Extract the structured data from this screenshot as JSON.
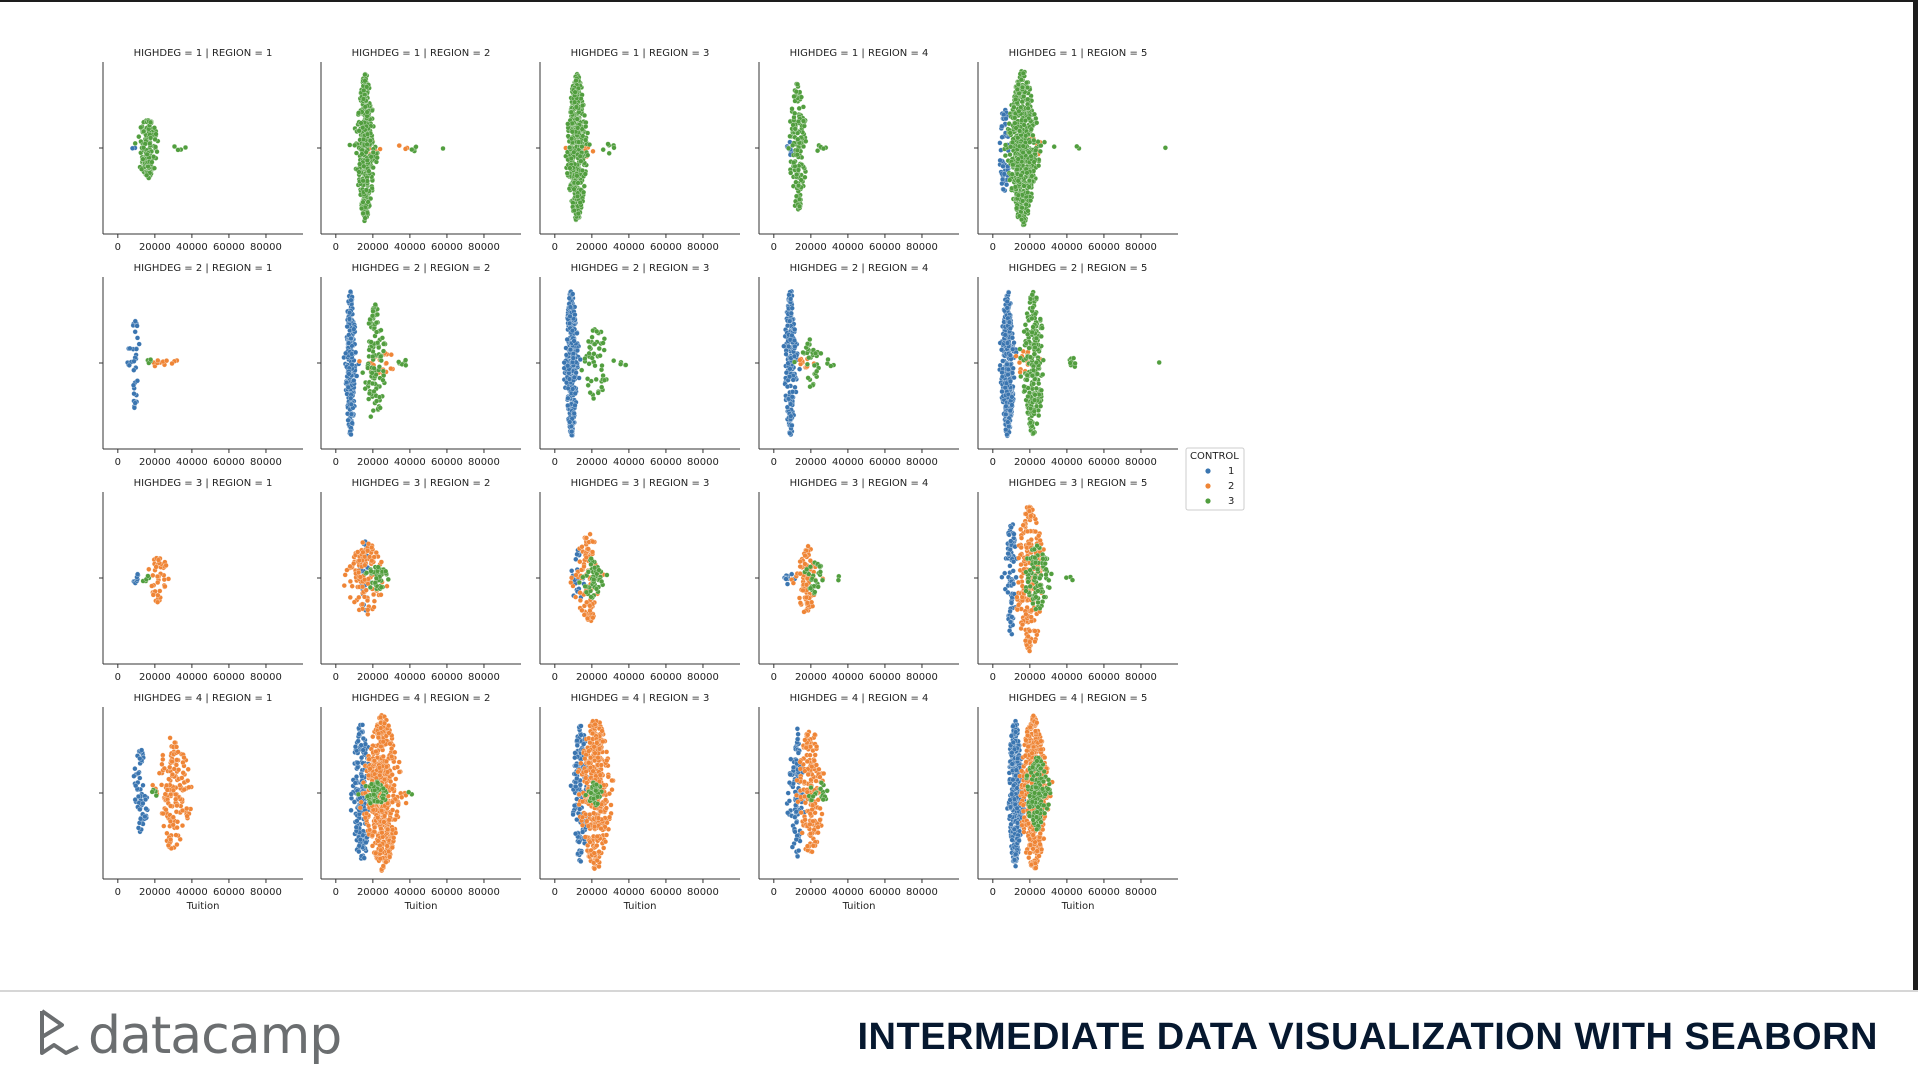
{
  "footer": {
    "brand": "datacamp",
    "course_title": "INTERMEDIATE DATA VISUALIZATION WITH SEABORN"
  },
  "colors": {
    "control_1": "#3a75b0",
    "control_2": "#ef8536",
    "control_3": "#519e3e",
    "brand_gray": "#6b6e70",
    "title_navy": "#06182f"
  },
  "chart_data": {
    "type": "scatter",
    "kind": "swarm",
    "rows": [
      {
        "title_prefix": "HIGHDEG = 1"
      },
      {
        "title_prefix": "HIGHDEG = 2"
      },
      {
        "title_prefix": "HIGHDEG = 3"
      },
      {
        "title_prefix": "HIGHDEG = 4"
      }
    ],
    "col_titles": [
      "REGION = 1",
      "REGION = 2",
      "REGION = 3",
      "REGION = 4",
      "REGION = 5"
    ],
    "xlabel": "Tuition",
    "xlim": [
      -8000,
      100000
    ],
    "xticks": [
      0,
      20000,
      40000,
      60000,
      80000
    ],
    "legend": {
      "title": "CONTROL",
      "placement": "right-center",
      "entries": [
        {
          "label": "1",
          "color": "#3a75b0"
        },
        {
          "label": "2",
          "color": "#ef8536"
        },
        {
          "label": "3",
          "color": "#519e3e"
        }
      ]
    },
    "panels": [
      [
        {
          "groups": [
            {
              "control": 1,
              "center": 8000,
              "spread": 600,
              "n": 2,
              "height": 0.05
            },
            {
              "control": 3,
              "center": 16000,
              "spread": 4500,
              "n": 140,
              "height": 0.38
            },
            {
              "control": 3,
              "center": 30000,
              "spread": 4000,
              "n": 4,
              "height": 0.05
            }
          ]
        },
        {
          "groups": [
            {
              "control": 2,
              "center": 18000,
              "spread": 6000,
              "n": 25,
              "height": 0.15
            },
            {
              "control": 2,
              "center": 36000,
              "spread": 2500,
              "n": 4,
              "height": 0.05
            },
            {
              "control": 3,
              "center": 16000,
              "spread": 3800,
              "n": 380,
              "height": 0.9
            },
            {
              "control": 3,
              "center": 42000,
              "spread": 4000,
              "n": 4,
              "height": 0.05
            },
            {
              "control": 3,
              "center": 58000,
              "spread": 800,
              "n": 1,
              "height": 0.02
            }
          ]
        },
        {
          "groups": [
            {
              "control": 2,
              "center": 15000,
              "spread": 5000,
              "n": 15,
              "height": 0.12
            },
            {
              "control": 3,
              "center": 12000,
              "spread": 4200,
              "n": 420,
              "height": 0.9
            },
            {
              "control": 3,
              "center": 30000,
              "spread": 3000,
              "n": 6,
              "height": 0.08
            }
          ]
        },
        {
          "groups": [
            {
              "control": 1,
              "center": 9000,
              "spread": 1800,
              "n": 10,
              "height": 0.1
            },
            {
              "control": 3,
              "center": 13000,
              "spread": 3500,
              "n": 150,
              "height": 0.8
            },
            {
              "control": 3,
              "center": 26000,
              "spread": 3000,
              "n": 6,
              "height": 0.05
            }
          ]
        },
        {
          "groups": [
            {
              "control": 1,
              "center": 6000,
              "spread": 2600,
              "n": 50,
              "height": 0.55
            },
            {
              "control": 2,
              "center": 20000,
              "spread": 6000,
              "n": 25,
              "height": 0.15
            },
            {
              "control": 3,
              "center": 16000,
              "spread": 6000,
              "n": 600,
              "height": 0.95
            },
            {
              "control": 3,
              "center": 45000,
              "spread": 1500,
              "n": 2,
              "height": 0.03
            },
            {
              "control": 3,
              "center": 93000,
              "spread": 800,
              "n": 1,
              "height": 0.02
            }
          ]
        }
      ],
      [
        {
          "groups": [
            {
              "control": 1,
              "center": 9000,
              "spread": 2200,
              "n": 35,
              "height": 0.6
            },
            {
              "control": 2,
              "center": 22000,
              "spread": 6000,
              "n": 8,
              "height": 0.05
            },
            {
              "control": 3,
              "center": 18000,
              "spread": 3000,
              "n": 5,
              "height": 0.05
            },
            {
              "control": 2,
              "center": 32000,
              "spread": 2500,
              "n": 3,
              "height": 0.04
            }
          ]
        },
        {
          "groups": [
            {
              "control": 1,
              "center": 8000,
              "spread": 2200,
              "n": 230,
              "height": 0.9
            },
            {
              "control": 2,
              "center": 24000,
              "spread": 7000,
              "n": 25,
              "height": 0.18
            },
            {
              "control": 3,
              "center": 21000,
              "spread": 4500,
              "n": 110,
              "height": 0.75
            },
            {
              "control": 3,
              "center": 37000,
              "spread": 3000,
              "n": 6,
              "height": 0.05
            }
          ]
        },
        {
          "groups": [
            {
              "control": 1,
              "center": 9000,
              "spread": 2600,
              "n": 330,
              "height": 0.9
            },
            {
              "control": 3,
              "center": 22000,
              "spread": 6000,
              "n": 55,
              "height": 0.45
            },
            {
              "control": 3,
              "center": 36000,
              "spread": 3000,
              "n": 4,
              "height": 0.05
            }
          ]
        },
        {
          "groups": [
            {
              "control": 1,
              "center": 9000,
              "spread": 2500,
              "n": 200,
              "height": 0.9
            },
            {
              "control": 2,
              "center": 17000,
              "spread": 4000,
              "n": 10,
              "height": 0.08
            },
            {
              "control": 3,
              "center": 20000,
              "spread": 4500,
              "n": 35,
              "height": 0.3
            },
            {
              "control": 3,
              "center": 30000,
              "spread": 2500,
              "n": 4,
              "height": 0.05
            }
          ]
        },
        {
          "groups": [
            {
              "control": 1,
              "center": 8000,
              "spread": 2800,
              "n": 350,
              "height": 0.9
            },
            {
              "control": 2,
              "center": 18000,
              "spread": 6000,
              "n": 20,
              "height": 0.15
            },
            {
              "control": 3,
              "center": 22000,
              "spread": 4500,
              "n": 230,
              "height": 0.9
            },
            {
              "control": 3,
              "center": 43000,
              "spread": 3000,
              "n": 8,
              "height": 0.06
            },
            {
              "control": 3,
              "center": 90000,
              "spread": 800,
              "n": 1,
              "height": 0.02
            }
          ]
        }
      ],
      [
        {
          "groups": [
            {
              "control": 1,
              "center": 10000,
              "spread": 1500,
              "n": 8,
              "height": 0.08
            },
            {
              "control": 2,
              "center": 22000,
              "spread": 4500,
              "n": 45,
              "height": 0.3
            },
            {
              "control": 3,
              "center": 14000,
              "spread": 2500,
              "n": 6,
              "height": 0.05
            }
          ]
        },
        {
          "groups": [
            {
              "control": 1,
              "center": 16000,
              "spread": 2500,
              "n": 30,
              "height": 0.45
            },
            {
              "control": 2,
              "center": 16000,
              "spread": 8000,
              "n": 120,
              "height": 0.45
            },
            {
              "control": 3,
              "center": 22000,
              "spread": 5000,
              "n": 40,
              "height": 0.15
            }
          ]
        },
        {
          "groups": [
            {
              "control": 1,
              "center": 12000,
              "spread": 2500,
              "n": 25,
              "height": 0.4
            },
            {
              "control": 2,
              "center": 18000,
              "spread": 6000,
              "n": 100,
              "height": 0.55
            },
            {
              "control": 3,
              "center": 20000,
              "spread": 5000,
              "n": 50,
              "height": 0.25
            }
          ]
        },
        {
          "groups": [
            {
              "control": 1,
              "center": 8000,
              "spread": 2500,
              "n": 10,
              "height": 0.08
            },
            {
              "control": 2,
              "center": 18000,
              "spread": 4500,
              "n": 80,
              "height": 0.45
            },
            {
              "control": 3,
              "center": 22000,
              "spread": 5000,
              "n": 30,
              "height": 0.2
            },
            {
              "control": 3,
              "center": 35000,
              "spread": 1500,
              "n": 2,
              "height": 0.03
            }
          ]
        },
        {
          "groups": [
            {
              "control": 1,
              "center": 10000,
              "spread": 2800,
              "n": 90,
              "height": 0.7
            },
            {
              "control": 2,
              "center": 20000,
              "spread": 6000,
              "n": 220,
              "height": 0.9
            },
            {
              "control": 3,
              "center": 24000,
              "spread": 6000,
              "n": 100,
              "height": 0.4
            },
            {
              "control": 3,
              "center": 42000,
              "spread": 1500,
              "n": 3,
              "height": 0.04
            }
          ]
        }
      ],
      [
        {
          "groups": [
            {
              "control": 1,
              "center": 12000,
              "spread": 3500,
              "n": 55,
              "height": 0.55
            },
            {
              "control": 2,
              "center": 30000,
              "spread": 7000,
              "n": 160,
              "height": 0.7
            },
            {
              "control": 3,
              "center": 20000,
              "spread": 2500,
              "n": 4,
              "height": 0.04
            }
          ]
        },
        {
          "groups": [
            {
              "control": 1,
              "center": 14000,
              "spread": 4000,
              "n": 200,
              "height": 0.9
            },
            {
              "control": 2,
              "center": 25000,
              "spread": 7500,
              "n": 520,
              "height": 0.95
            },
            {
              "control": 3,
              "center": 22000,
              "spread": 6000,
              "n": 60,
              "height": 0.15
            },
            {
              "control": 3,
              "center": 40000,
              "spread": 1500,
              "n": 2,
              "height": 0.03
            }
          ]
        },
        {
          "groups": [
            {
              "control": 1,
              "center": 14000,
              "spread": 3500,
              "n": 160,
              "height": 0.85
            },
            {
              "control": 2,
              "center": 22000,
              "spread": 6500,
              "n": 380,
              "height": 0.95
            },
            {
              "control": 3,
              "center": 22000,
              "spread": 4000,
              "n": 35,
              "height": 0.15
            }
          ]
        },
        {
          "groups": [
            {
              "control": 1,
              "center": 12000,
              "spread": 3200,
              "n": 100,
              "height": 0.85
            },
            {
              "control": 2,
              "center": 20000,
              "spread": 6000,
              "n": 180,
              "height": 0.8
            },
            {
              "control": 3,
              "center": 24000,
              "spread": 5000,
              "n": 20,
              "height": 0.15
            }
          ]
        },
        {
          "groups": [
            {
              "control": 1,
              "center": 12000,
              "spread": 3000,
              "n": 330,
              "height": 0.9
            },
            {
              "control": 2,
              "center": 22000,
              "spread": 6000,
              "n": 400,
              "height": 0.95
            },
            {
              "control": 3,
              "center": 24000,
              "spread": 5000,
              "n": 160,
              "height": 0.45
            }
          ]
        }
      ]
    ]
  }
}
